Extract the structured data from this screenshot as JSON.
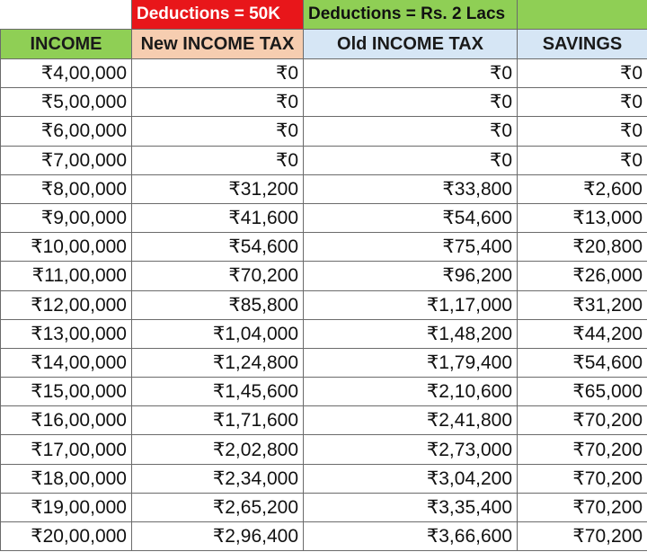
{
  "colors": {
    "red_header": "#e8161a",
    "green_header": "#8fcf55",
    "peach_header": "#f6cdb0",
    "blue_header": "#d6e6f5"
  },
  "top_row": {
    "new_deductions": "Deductions = 50K",
    "old_deductions": "Deductions = Rs. 2 Lacs"
  },
  "headers": {
    "income": "INCOME",
    "new_tax": "New INCOME TAX",
    "old_tax": "Old INCOME TAX",
    "savings": "SAVINGS"
  },
  "rows": [
    [
      "₹4,00,000",
      "₹0",
      "₹0",
      "₹0"
    ],
    [
      "₹5,00,000",
      "₹0",
      "₹0",
      "₹0"
    ],
    [
      "₹6,00,000",
      "₹0",
      "₹0",
      "₹0"
    ],
    [
      "₹7,00,000",
      "₹0",
      "₹0",
      "₹0"
    ],
    [
      "₹8,00,000",
      "₹31,200",
      "₹33,800",
      "₹2,600"
    ],
    [
      "₹9,00,000",
      "₹41,600",
      "₹54,600",
      "₹13,000"
    ],
    [
      "₹10,00,000",
      "₹54,600",
      "₹75,400",
      "₹20,800"
    ],
    [
      "₹11,00,000",
      "₹70,200",
      "₹96,200",
      "₹26,000"
    ],
    [
      "₹12,00,000",
      "₹85,800",
      "₹1,17,000",
      "₹31,200"
    ],
    [
      "₹13,00,000",
      "₹1,04,000",
      "₹1,48,200",
      "₹44,200"
    ],
    [
      "₹14,00,000",
      "₹1,24,800",
      "₹1,79,400",
      "₹54,600"
    ],
    [
      "₹15,00,000",
      "₹1,45,600",
      "₹2,10,600",
      "₹65,000"
    ],
    [
      "₹16,00,000",
      "₹1,71,600",
      "₹2,41,800",
      "₹70,200"
    ],
    [
      "₹17,00,000",
      "₹2,02,800",
      "₹2,73,000",
      "₹70,200"
    ],
    [
      "₹18,00,000",
      "₹2,34,000",
      "₹3,04,200",
      "₹70,200"
    ],
    [
      "₹19,00,000",
      "₹2,65,200",
      "₹3,35,400",
      "₹70,200"
    ],
    [
      "₹20,00,000",
      "₹2,96,400",
      "₹3,66,600",
      "₹70,200"
    ]
  ]
}
